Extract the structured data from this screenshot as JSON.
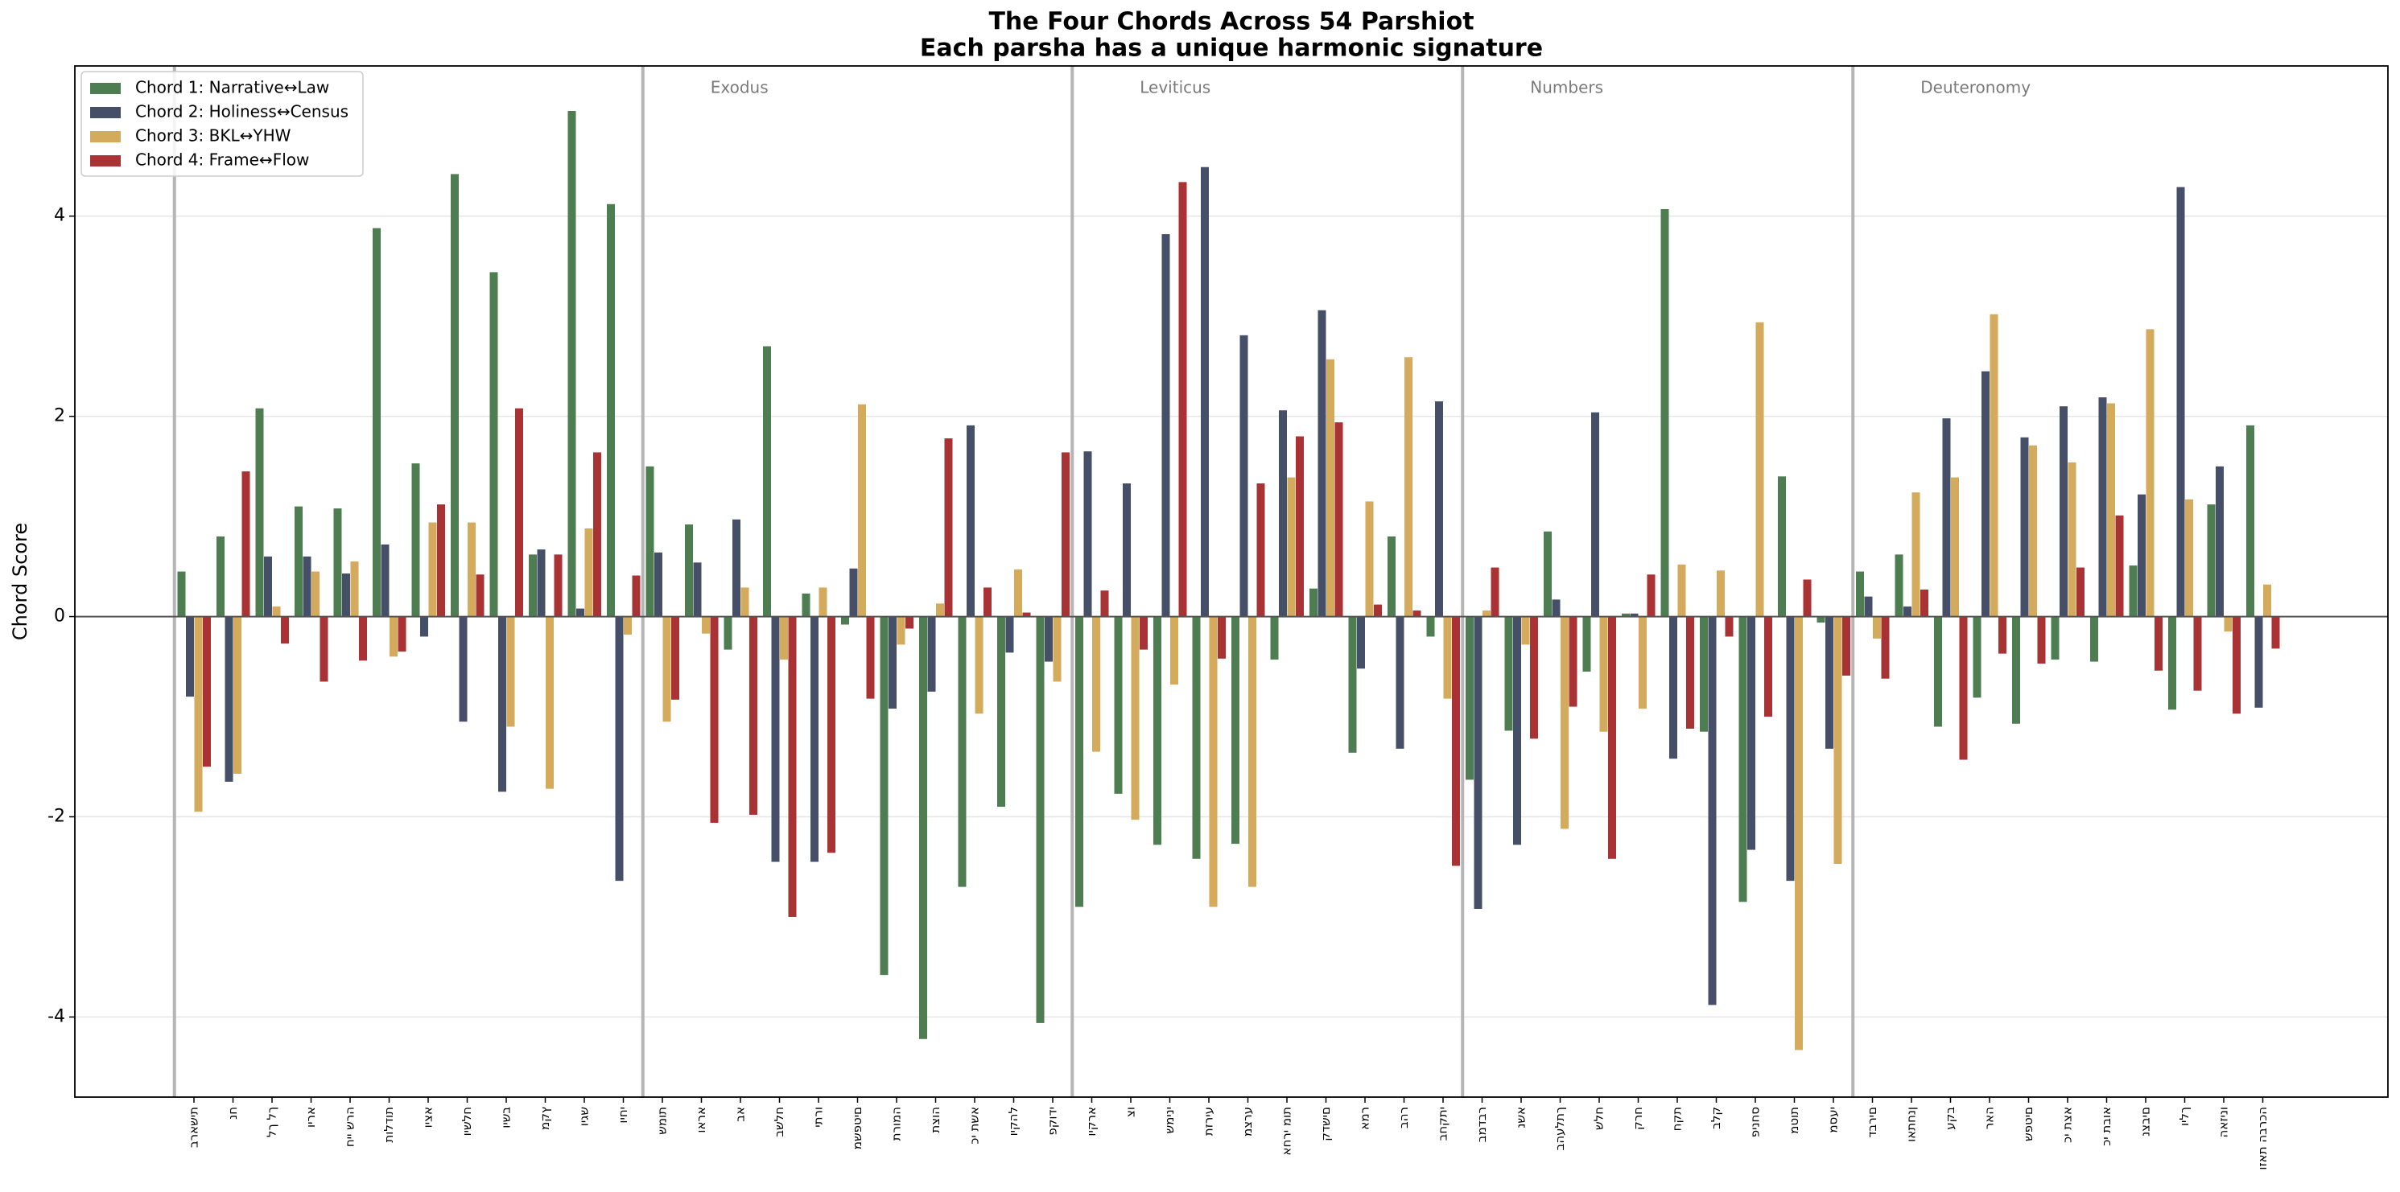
{
  "chart_data": {
    "type": "bar",
    "title": "The Four Chords Across 54 Parshiot",
    "subtitle": "Each parsha has a unique harmonic signature",
    "y_label": "Chord Score",
    "groups": [
      {
        "label": null,
        "categories": [
          "בראשית",
          "נח",
          "לך לך",
          "וירא",
          "חיי שרה",
          "תולדות",
          "ויצא",
          "וישלח",
          "וישב",
          "מקץ",
          "ויגש",
          "ויחי"
        ]
      },
      {
        "label": "Exodus",
        "categories": [
          "שמות",
          "וארא",
          "בא",
          "בשלח",
          "יתרו",
          "משפטים",
          "תרומה",
          "תצוה",
          "כי תשא",
          "ויקהל",
          "פקודי"
        ]
      },
      {
        "label": "Leviticus",
        "categories": [
          "ויקרא",
          "צו",
          "שמיני",
          "תזריע",
          "מצרע",
          "אחרי מות",
          "קדשים",
          "אמר",
          "בהר",
          "בחקתי"
        ]
      },
      {
        "label": "Numbers",
        "categories": [
          "במדבר",
          "נשא",
          "בהעלתך",
          "שלח",
          "קרח",
          "חקת",
          "בלק",
          "פינחס",
          "מטות",
          "מסעי"
        ]
      },
      {
        "label": "Deuteronomy",
        "categories": [
          "דברים",
          "ואתחנן",
          "עקב",
          "ראה",
          "שפטים",
          "כי תצא",
          "כי תבוא",
          "נצבים",
          "וילך",
          "האזינו",
          "וזאת הברכה"
        ]
      }
    ],
    "series": [
      {
        "name": "Chord 1: Narrative↔Law",
        "color": "#4f7d52",
        "values": [
          0.45,
          0.8,
          2.08,
          1.1,
          1.08,
          3.88,
          1.53,
          4.42,
          3.44,
          0.62,
          5.05,
          4.12,
          1.5,
          0.92,
          -0.33,
          2.7,
          0.23,
          -0.08,
          -3.58,
          -4.22,
          -2.7,
          -1.9,
          -4.06,
          -2.9,
          -1.77,
          -2.28,
          -2.42,
          -2.27,
          -0.43,
          0.28,
          -1.36,
          0.8,
          -0.2,
          -1.63,
          -1.14,
          0.85,
          -0.55,
          0.03,
          4.07,
          -1.15,
          -2.85,
          1.4,
          -0.06,
          0.45,
          0.62,
          -1.1,
          -0.81,
          -1.07,
          -0.43,
          -0.45,
          0.51,
          -0.93,
          1.12,
          1.91
        ]
      },
      {
        "name": "Chord 2: Holiness↔Census",
        "color": "#464f68",
        "values": [
          -0.8,
          -1.65,
          0.6,
          0.6,
          0.43,
          0.72,
          -0.2,
          -1.05,
          -1.75,
          0.67,
          0.08,
          -2.64,
          0.64,
          0.54,
          0.97,
          -2.45,
          -2.45,
          0.48,
          -0.92,
          -0.75,
          1.91,
          -0.36,
          -0.45,
          1.65,
          1.33,
          3.82,
          4.49,
          2.81,
          2.06,
          3.06,
          -0.52,
          -1.32,
          2.15,
          -2.92,
          -2.28,
          0.17,
          2.04,
          0.03,
          -1.42,
          -3.88,
          -2.33,
          -2.64,
          -1.32,
          0.2,
          0.1,
          1.98,
          2.45,
          1.79,
          2.1,
          2.19,
          1.22,
          4.29,
          1.5,
          -0.91
        ]
      },
      {
        "name": "Chord 3: BKL↔YHW",
        "color": "#d4aa5c",
        "values": [
          -1.95,
          -1.57,
          0.1,
          0.45,
          0.55,
          -0.4,
          0.94,
          0.94,
          -1.1,
          -1.72,
          0.88,
          -0.18,
          -1.05,
          -0.17,
          0.29,
          -0.43,
          0.29,
          2.12,
          -0.28,
          0.13,
          -0.97,
          0.47,
          -0.65,
          -1.35,
          -2.03,
          -0.68,
          -2.9,
          -2.7,
          1.39,
          2.57,
          1.15,
          2.59,
          -0.82,
          0.06,
          -0.28,
          -2.12,
          -1.15,
          -0.92,
          0.52,
          0.46,
          2.94,
          -4.33,
          -2.47,
          -0.22,
          1.24,
          1.39,
          3.02,
          1.71,
          1.54,
          2.13,
          2.87,
          1.17,
          -0.15,
          0.32
        ]
      },
      {
        "name": "Chord 4: Frame↔Flow",
        "color": "#a83234",
        "values": [
          -1.5,
          1.45,
          -0.27,
          -0.65,
          -0.44,
          -0.35,
          1.12,
          0.42,
          2.08,
          0.62,
          1.64,
          0.41,
          -0.83,
          -2.06,
          -1.98,
          -3.0,
          -2.36,
          -0.82,
          -0.12,
          1.78,
          0.29,
          0.04,
          1.64,
          0.26,
          -0.33,
          4.34,
          -0.42,
          1.33,
          1.8,
          1.94,
          0.12,
          0.06,
          -2.49,
          0.49,
          -1.22,
          -0.9,
          -2.42,
          0.42,
          -1.12,
          -0.2,
          -1.0,
          0.37,
          -0.59,
          -0.62,
          0.27,
          -1.43,
          -0.37,
          -0.47,
          0.49,
          1.01,
          -0.54,
          -0.74,
          -0.97,
          -0.32
        ]
      }
    ],
    "ylim": [
      -4.8,
      5.5
    ],
    "yticks": [
      -4,
      -2,
      0,
      2,
      4
    ],
    "grid": true,
    "legend": "upper left"
  }
}
